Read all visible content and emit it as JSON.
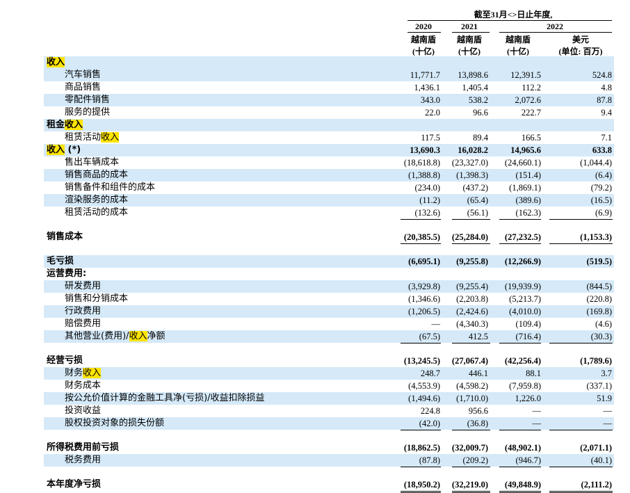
{
  "header": {
    "period": "截至31月<>日止年度,",
    "years": [
      "2020",
      "2021",
      "2022"
    ],
    "cols": [
      {
        "currency": "越南盾",
        "unit": "(十亿)"
      },
      {
        "currency": "越南盾",
        "unit": "(十亿)"
      },
      {
        "currency": "越南盾",
        "unit": "(十亿)"
      },
      {
        "currency": "美元",
        "unit": "(单位: 百万)"
      }
    ]
  },
  "rows": [
    {
      "segs": [
        {
          "t": "收入",
          "hl": true
        }
      ],
      "indent": 0,
      "bold": true,
      "shaded": true,
      "vals": []
    },
    {
      "segs": [
        {
          "t": "汽车销售"
        }
      ],
      "indent": 1,
      "shaded": true,
      "vals": [
        "11,771.7",
        "13,898.6",
        "12,391.5",
        "524.8"
      ]
    },
    {
      "segs": [
        {
          "t": "商品销售"
        }
      ],
      "indent": 1,
      "shaded": false,
      "vals": [
        "1,436.1",
        "1,405.4",
        "112.2",
        "4.8"
      ]
    },
    {
      "segs": [
        {
          "t": "零配件销售"
        }
      ],
      "indent": 1,
      "shaded": true,
      "vals": [
        "343.0",
        "538.2",
        "2,072.6",
        "87.8"
      ]
    },
    {
      "segs": [
        {
          "t": "服务的提供"
        }
      ],
      "indent": 1,
      "shaded": false,
      "vals": [
        "22.0",
        "96.6",
        "222.7",
        "9.4"
      ],
      "ul": true
    },
    {
      "segs": [
        {
          "t": "租金"
        },
        {
          "t": "收入",
          "hl": true
        }
      ],
      "indent": 0,
      "bold": true,
      "shaded": true,
      "vals": []
    },
    {
      "segs": [
        {
          "t": "租赁活动"
        },
        {
          "t": "收入",
          "hl": true
        }
      ],
      "indent": 1,
      "shaded": false,
      "vals": [
        "117.5",
        "89.4",
        "166.5",
        "7.1"
      ],
      "ul": true
    },
    {
      "segs": [
        {
          "t": "收入",
          "hl": true
        },
        {
          "t": " (*)"
        }
      ],
      "indent": 0,
      "bold": true,
      "shaded": true,
      "vals": [
        "13,690.3",
        "16,028.2",
        "14,965.6",
        "633.8"
      ]
    },
    {
      "segs": [
        {
          "t": "售出车辆成本"
        }
      ],
      "indent": 1,
      "shaded": false,
      "vals": [
        "(18,618.8)",
        "(23,327.0)",
        "(24,660.1)",
        "(1,044.4)"
      ]
    },
    {
      "segs": [
        {
          "t": "销售商品的成本"
        }
      ],
      "indent": 1,
      "shaded": true,
      "vals": [
        "(1,388.8)",
        "(1,398.3)",
        "(151.4)",
        "(6.4)"
      ]
    },
    {
      "segs": [
        {
          "t": "销售备件和组件的成本"
        }
      ],
      "indent": 1,
      "shaded": false,
      "vals": [
        "(234.0)",
        "(437.2)",
        "(1,869.1)",
        "(79.2)"
      ]
    },
    {
      "segs": [
        {
          "t": "渲染服务的成本"
        }
      ],
      "indent": 1,
      "shaded": true,
      "vals": [
        "(11.2)",
        "(65.4)",
        "(389.6)",
        "(16.5)"
      ]
    },
    {
      "segs": [
        {
          "t": "租赁活动的成本"
        }
      ],
      "indent": 1,
      "shaded": false,
      "vals": [
        "(132.6)",
        "(56.1)",
        "(162.3)",
        "(6.9)"
      ],
      "ul": true
    },
    {
      "segs": [
        {
          "t": "销售成本"
        }
      ],
      "indent": 0,
      "bold": true,
      "shaded": false,
      "vals": [
        "(20,385.5)",
        "(25,284.0)",
        "(27,232.5)",
        "(1,153.3)"
      ],
      "ul": true,
      "gapBefore": true
    },
    {
      "segs": [
        {
          "t": "毛亏损"
        }
      ],
      "indent": 0,
      "bold": true,
      "shaded": true,
      "vals": [
        "(6,695.1)",
        "(9,255.8)",
        "(12,266.9)",
        "(519.5)"
      ],
      "gapBefore": true
    },
    {
      "segs": [
        {
          "t": "运营费用:"
        }
      ],
      "indent": 0,
      "bold": true,
      "shaded": false,
      "vals": []
    },
    {
      "segs": [
        {
          "t": "研发费用"
        }
      ],
      "indent": 1,
      "shaded": true,
      "vals": [
        "(3,929.8)",
        "(9,255.4)",
        "(19,939.9)",
        "(844.5)"
      ]
    },
    {
      "segs": [
        {
          "t": "销售和分销成本"
        }
      ],
      "indent": 1,
      "shaded": false,
      "vals": [
        "(1,346.6)",
        "(2,203.8)",
        "(5,213.7)",
        "(220.8)"
      ]
    },
    {
      "segs": [
        {
          "t": "行政费用"
        }
      ],
      "indent": 1,
      "shaded": true,
      "vals": [
        "(1,206.5)",
        "(2,424.6)",
        "(4,010.0)",
        "(169.8)"
      ]
    },
    {
      "segs": [
        {
          "t": "赔偿费用"
        }
      ],
      "indent": 1,
      "shaded": false,
      "vals": [
        "—",
        "(4,340.3)",
        "(109.4)",
        "(4.6)"
      ]
    },
    {
      "segs": [
        {
          "t": "其他营业(费用)/"
        },
        {
          "t": "收入",
          "hl": true
        },
        {
          "t": "净额"
        }
      ],
      "indent": 1,
      "shaded": true,
      "vals": [
        "(67.5)",
        "412.5",
        "(716.4)",
        "(30.3)"
      ],
      "ul": true
    },
    {
      "segs": [
        {
          "t": "经营亏损"
        }
      ],
      "indent": 0,
      "bold": true,
      "shaded": false,
      "vals": [
        "(13,245.5)",
        "(27,067.4)",
        "(42,256.4)",
        "(1,789.6)"
      ],
      "gapBefore": true
    },
    {
      "segs": [
        {
          "t": "财务"
        },
        {
          "t": "收入",
          "hl": true
        }
      ],
      "indent": 1,
      "shaded": true,
      "vals": [
        "248.7",
        "446.1",
        "88.1",
        "3.7"
      ]
    },
    {
      "segs": [
        {
          "t": "财务成本"
        }
      ],
      "indent": 1,
      "shaded": false,
      "vals": [
        "(4,553.9)",
        "(4,598.2)",
        "(7,959.8)",
        "(337.1)"
      ]
    },
    {
      "segs": [
        {
          "t": "按公允价值计算的金融工具净(亏损)/收益扣除损益"
        }
      ],
      "indent": 1,
      "shaded": true,
      "vals": [
        "(1,494.6)",
        "(1,710.0)",
        "1,226.0",
        "51.9"
      ]
    },
    {
      "segs": [
        {
          "t": "投资收益"
        }
      ],
      "indent": 1,
      "shaded": false,
      "vals": [
        "224.8",
        "956.6",
        "—",
        "—"
      ]
    },
    {
      "segs": [
        {
          "t": "股权投资对象的损失份额"
        }
      ],
      "indent": 1,
      "shaded": true,
      "vals": [
        "(42.0)",
        "(36.8)",
        "—",
        "—"
      ],
      "ul": true
    },
    {
      "segs": [
        {
          "t": "所得税费用前亏损"
        }
      ],
      "indent": 0,
      "bold": true,
      "shaded": false,
      "vals": [
        "(18,862.5)",
        "(32,009.7)",
        "(48,902.1)",
        "(2,071.1)"
      ],
      "gapBefore": true
    },
    {
      "segs": [
        {
          "t": "税务费用"
        }
      ],
      "indent": 1,
      "shaded": true,
      "vals": [
        "(87.8)",
        "(209.2)",
        "(946.7)",
        "(40.1)"
      ],
      "ul": true
    },
    {
      "segs": [
        {
          "t": "本年度净亏损"
        }
      ],
      "indent": 0,
      "bold": true,
      "shaded": false,
      "vals": [
        "(18,950.2)",
        "(32,219.0)",
        "(49,848.9)",
        "(2,111.2)"
      ],
      "dul": true,
      "gapBefore": true
    }
  ]
}
